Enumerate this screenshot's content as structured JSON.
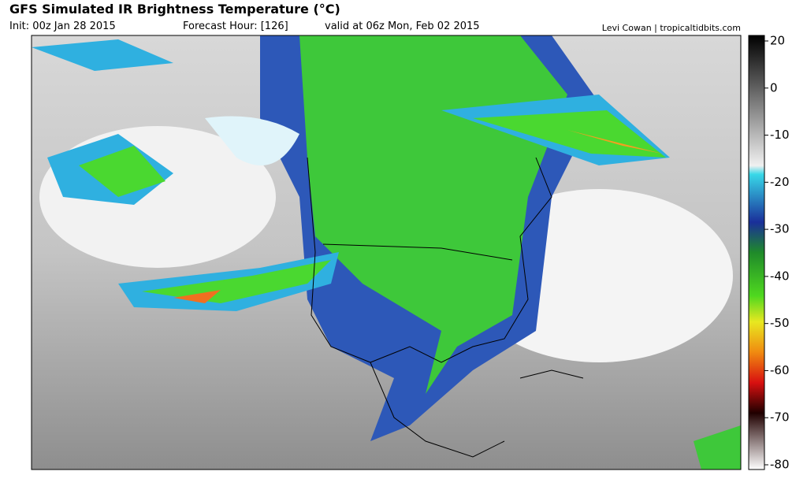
{
  "header": {
    "title": "GFS Simulated IR Brightness Temperature (°C)",
    "init": "Init: 00z Jan 28 2015",
    "forecast_hour": "Forecast Hour: [126]",
    "valid": "valid at 06z Mon, Feb 02 2015",
    "credit": "Levi Cowan | tropicaltidbits.com"
  },
  "colorbar": {
    "ticks": [
      20,
      0,
      -10,
      -20,
      -30,
      -40,
      -50,
      -60,
      -70,
      -80
    ]
  }
}
